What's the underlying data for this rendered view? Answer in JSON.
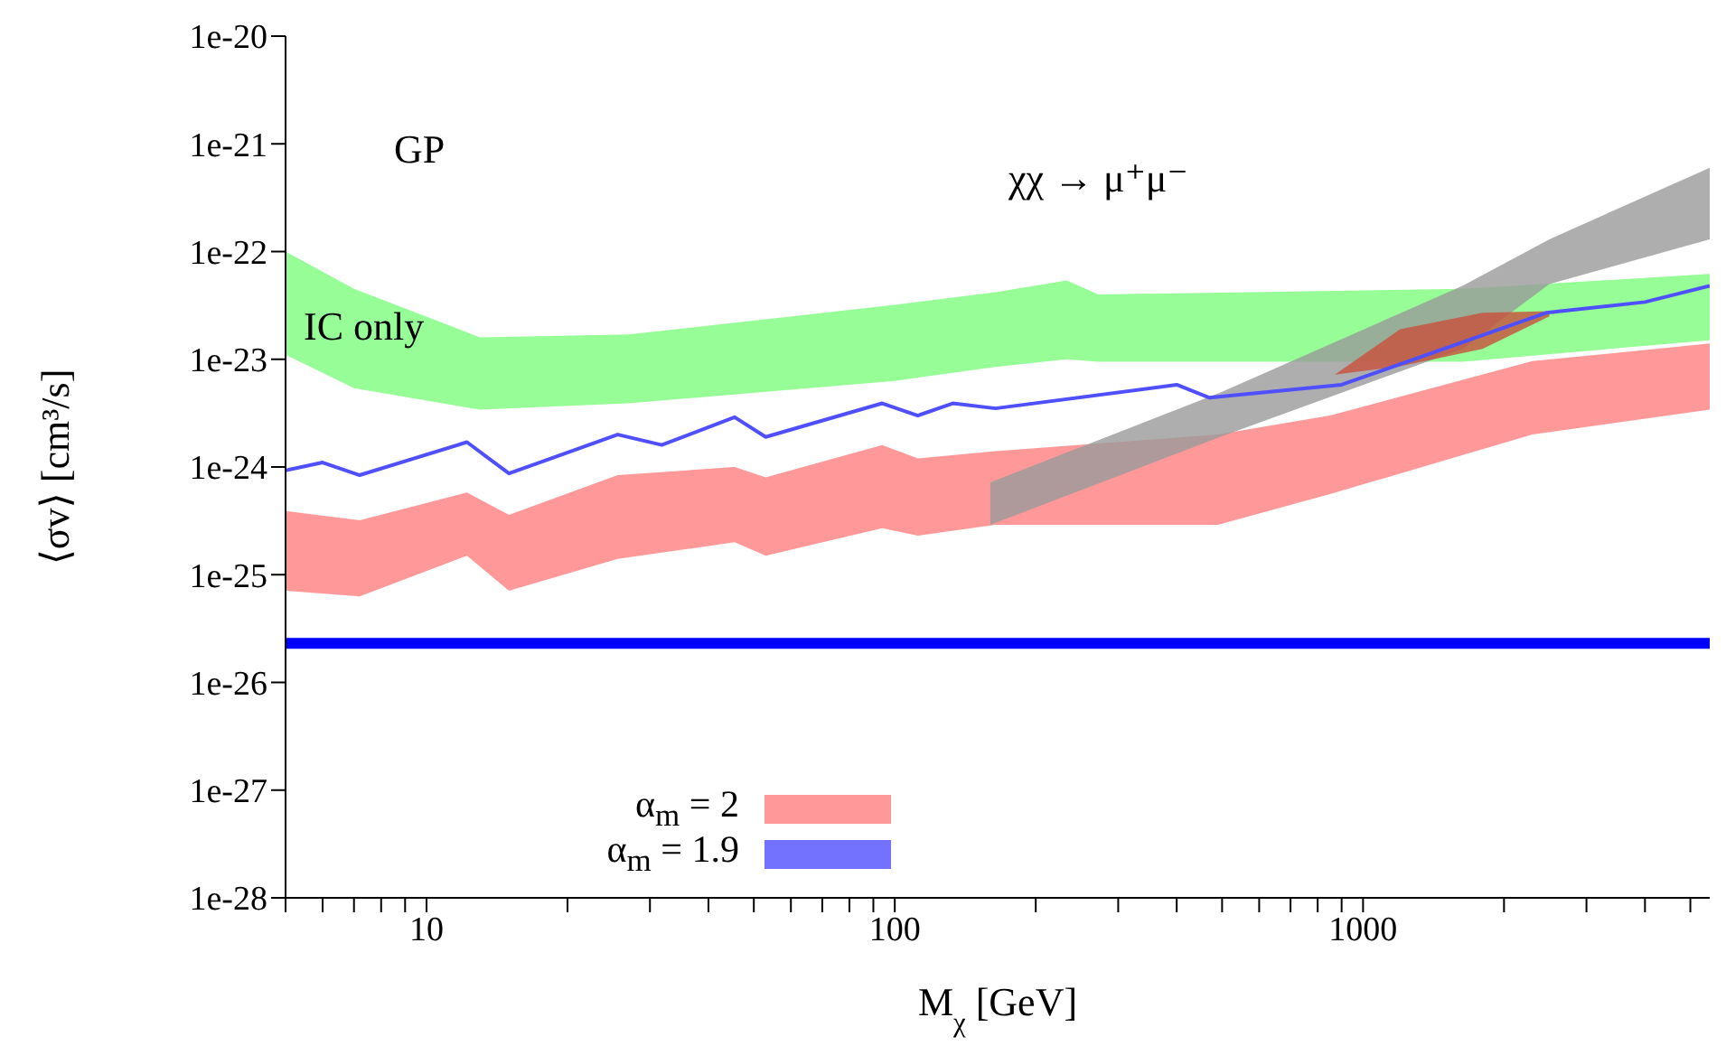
{
  "chart_data": {
    "type": "area",
    "xlabel": "M$_{χ}$ [GeV]",
    "ylabel": "⟨σv⟩ [cm³/s]",
    "annotations": [
      "GP",
      "χχ → μ⁺μ⁻",
      "IC only"
    ],
    "log": "xy",
    "grid": false,
    "legend": "bottom left",
    "marker": "none",
    "line_style": "solid",
    "xlim": [
      5,
      5500
    ],
    "xticks": [
      {
        "value": 5,
        "label": null
      },
      {
        "value": 6,
        "label": null
      },
      {
        "value": 7,
        "label": null
      },
      {
        "value": 8,
        "label": null
      },
      {
        "value": 9,
        "label": null
      },
      10,
      {
        "value": 20,
        "label": null
      },
      {
        "value": 30,
        "label": null
      },
      {
        "value": 40,
        "label": null
      },
      {
        "value": 50,
        "label": null
      },
      {
        "value": 60,
        "label": null
      },
      {
        "value": 70,
        "label": null
      },
      {
        "value": 80,
        "label": null
      },
      {
        "value": 90,
        "label": null
      },
      100,
      {
        "value": 200,
        "label": null
      },
      {
        "value": 300,
        "label": null
      },
      {
        "value": 400,
        "label": null
      },
      {
        "value": 500,
        "label": null
      },
      {
        "value": 600,
        "label": null
      },
      {
        "value": 700,
        "label": null
      },
      {
        "value": 800,
        "label": null
      },
      {
        "value": 900,
        "label": null
      },
      1000,
      {
        "value": 2000,
        "label": null
      },
      {
        "value": 3000,
        "label": null
      },
      {
        "value": 4000,
        "label": null
      },
      {
        "value": 5000,
        "label": null
      }
    ],
    "ylim": [
      1e-28,
      1e-20
    ],
    "yticks": [
      {
        "value": 1e-28,
        "label": "1e-28"
      },
      {
        "value": 1e-27,
        "label": "1e-27"
      },
      {
        "value": 1e-26,
        "label": "1e-26"
      },
      {
        "value": 1e-25,
        "label": "1e-25"
      },
      {
        "value": 1e-24,
        "label": "1e-24"
      },
      {
        "value": 1e-23,
        "label": "1e-23"
      },
      {
        "value": 1e-22,
        "label": "1e-22"
      },
      {
        "value": 1e-21,
        "label": "1e-21"
      },
      {
        "value": 1e-20,
        "label": "1e-20"
      }
    ],
    "ref_lines": [
      {
        "axis": "y",
        "value": 2.3e-26,
        "color": "#0000ff"
      }
    ],
    "series": [
      {
        "color": "#7dfc7d",
        "x": [
          5,
          7,
          13,
          27,
          100,
          164,
          233,
          272,
          1630,
          5500
        ],
        "values": [
          null,
          null,
          null,
          null,
          null,
          null,
          null,
          null,
          null,
          null
        ],
        "lower": [
          1.1e-23,
          5.4e-24,
          3.4e-24,
          3.9e-24,
          6.3e-24,
          8.5e-24,
          1e-23,
          9.5e-24,
          9.5e-24,
          1.5e-23
        ],
        "upper": [
          1e-22,
          4.5e-23,
          1.6e-23,
          1.7e-23,
          3.2e-23,
          4.2e-23,
          5.4e-23,
          4e-23,
          4.5e-23,
          6.2e-23
        ]
      },
      {
        "name": "α$_{m}$ = 2",
        "color": "#ff7f7f",
        "x": [
          5,
          7.2,
          12.2,
          15,
          25.6,
          45.5,
          53,
          94,
          112,
          164,
          490,
          850,
          2300,
          5500
        ],
        "values": [
          null,
          null,
          null,
          null,
          null,
          null,
          null,
          null,
          null,
          null,
          null,
          null,
          null,
          null
        ],
        "lower": [
          7.1e-26,
          6.3e-26,
          1.5e-25,
          7.1e-26,
          1.4e-25,
          2e-25,
          1.5e-25,
          2.7e-25,
          2.3e-25,
          2.9e-25,
          2.9e-25,
          5.6e-25,
          2e-24,
          3.4e-24
        ],
        "upper": [
          3.9e-25,
          3.2e-25,
          5.8e-25,
          3.6e-25,
          8.4e-25,
          1e-24,
          8e-25,
          1.6e-24,
          1.2e-24,
          1.4e-24,
          2e-24,
          3e-24,
          9.6e-24,
          1.4e-23
        ]
      },
      {
        "type": "line",
        "name": "α$_{m}$ = 1.9",
        "color": "#4f4fff",
        "x": [
          5,
          6,
          7.2,
          12.2,
          15,
          25.6,
          31.8,
          45.5,
          53,
          94,
          112,
          133,
          164,
          400,
          470,
          900,
          2460,
          4000,
          5500
        ],
        "values": [
          9.3e-25,
          1.1e-24,
          8.4e-25,
          1.7e-24,
          8.7e-25,
          2e-24,
          1.6e-24,
          2.9e-24,
          1.9e-24,
          3.9e-24,
          3e-24,
          3.9e-24,
          3.5e-24,
          5.8e-24,
          4.4e-24,
          5.8e-24,
          2.7e-23,
          3.4e-23,
          4.8e-23
        ]
      },
      {
        "color": "#9a9a9a",
        "x": [
          160,
          495,
          1630,
          2500,
          5500
        ],
        "values": [
          null,
          null,
          null,
          null,
          null
        ],
        "lower": [
          2.9e-25,
          1.9e-24,
          1.25e-23,
          5e-23,
          1.3e-22
        ],
        "upper": [
          7.2e-25,
          4.9e-24,
          4.8e-23,
          1.3e-22,
          6e-22
        ]
      },
      {
        "color": "#c8503c",
        "x": [
          870,
          1200,
          1800,
          2500
        ],
        "values": [
          null,
          null,
          null,
          null
        ],
        "lower": [
          7.2e-24,
          8.6e-24,
          1.25e-23,
          2.5e-23
        ],
        "upper": [
          7.2e-24,
          1.9e-23,
          2.7e-23,
          2.8e-23
        ]
      }
    ]
  }
}
